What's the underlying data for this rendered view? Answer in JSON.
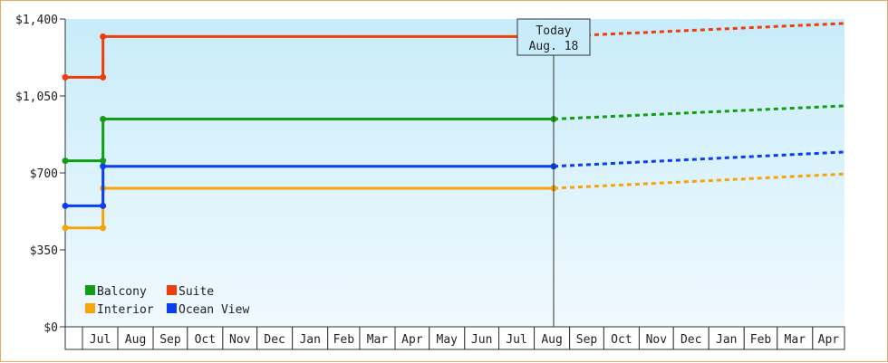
{
  "chart_data": {
    "type": "line",
    "step": true,
    "y_tick_labels": [
      "$0",
      "$350",
      "$700",
      "$1,050",
      "$1,400"
    ],
    "y_ticks": [
      0,
      350,
      700,
      1050,
      1400
    ],
    "ylim": [
      0,
      1400
    ],
    "grid": false,
    "legend_position": "bottom-left",
    "month_labels": [
      "Jul",
      "Aug",
      "Sep",
      "Oct",
      "Nov",
      "Dec",
      "Jan",
      "Feb",
      "Mar",
      "Apr",
      "May",
      "Jun",
      "Jul",
      "Aug",
      "Sep",
      "Oct",
      "Nov",
      "Dec",
      "Jan",
      "Feb",
      "Mar",
      "Apr"
    ],
    "today_marker": {
      "line1": "Today",
      "line2": "Aug. 18"
    },
    "series": [
      {
        "name": "Balcony",
        "color": "#129e12",
        "historical": [
          [
            "2014-06-01",
            755
          ],
          [
            "2014-07-19",
            755
          ],
          [
            "2014-07-19",
            945
          ],
          [
            "2015-08-18",
            945
          ]
        ],
        "forecast": [
          [
            "2015-08-18",
            945
          ],
          [
            "2016-05-01",
            1005
          ]
        ]
      },
      {
        "name": "Suite",
        "color": "#f03c0a",
        "historical": [
          [
            "2014-06-01",
            1135
          ],
          [
            "2014-07-19",
            1135
          ],
          [
            "2014-07-19",
            1320
          ],
          [
            "2015-08-18",
            1320
          ]
        ],
        "forecast": [
          [
            "2015-08-18",
            1320
          ],
          [
            "2016-05-01",
            1380
          ]
        ]
      },
      {
        "name": "Interior",
        "color": "#f5a40c",
        "historical": [
          [
            "2014-06-01",
            450
          ],
          [
            "2014-07-19",
            450
          ],
          [
            "2014-07-19",
            630
          ],
          [
            "2015-08-18",
            630
          ]
        ],
        "forecast": [
          [
            "2015-08-18",
            630
          ],
          [
            "2016-05-01",
            695
          ]
        ]
      },
      {
        "name": "Ocean View",
        "color": "#0a3ef0",
        "historical": [
          [
            "2014-06-01",
            550
          ],
          [
            "2014-07-19",
            550
          ],
          [
            "2014-07-19",
            730
          ],
          [
            "2015-08-18",
            730
          ]
        ],
        "forecast": [
          [
            "2015-08-18",
            730
          ],
          [
            "2016-05-01",
            795
          ]
        ]
      }
    ]
  }
}
